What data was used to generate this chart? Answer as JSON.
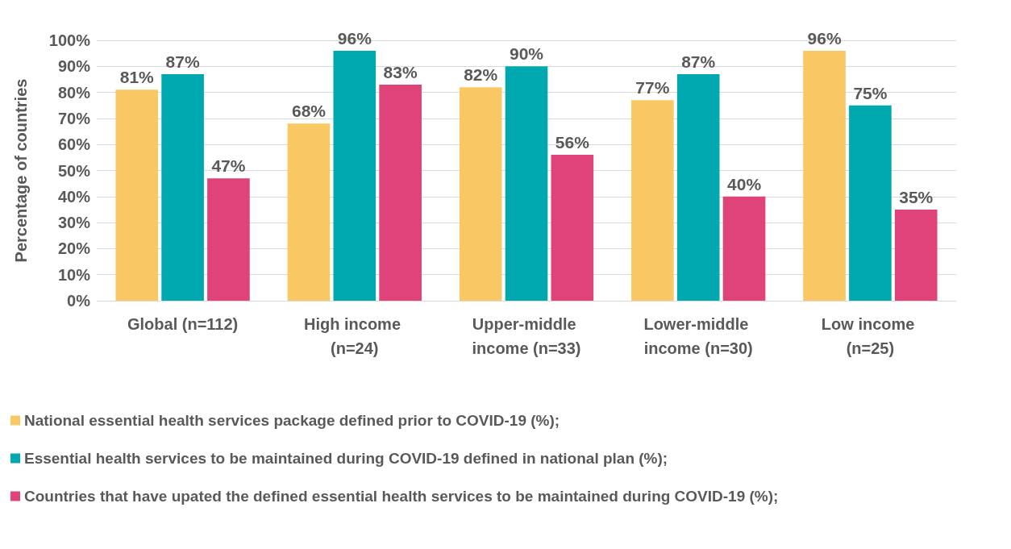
{
  "chart_data": {
    "type": "bar",
    "ylabel": "Percentage of countries",
    "categories": [
      "Global (n=112)",
      "High income (n=24)",
      "Upper-middle income (n=33)",
      "Lower-middle income (n=30)",
      "Low income (n=25)"
    ],
    "series": [
      {
        "name": "National essential health services package defined prior to COVID-19 (%);",
        "color": "#f9c763",
        "values": [
          81,
          68,
          82,
          77,
          96
        ],
        "value_labels": [
          "81%",
          "68%",
          "82%",
          "77%",
          "96%"
        ]
      },
      {
        "name": "Essential health services to be maintained during COVID-19 defined in national plan (%);",
        "color": "#00a9b0",
        "values": [
          87,
          96,
          90,
          87,
          75
        ],
        "value_labels": [
          "87%",
          "96%",
          "90%",
          "87%",
          "75%"
        ]
      },
      {
        "name": "Countries that have upated the defined essential health services to be maintained during COVID-19 (%);",
        "color": "#e0427a",
        "values": [
          47,
          83,
          56,
          40,
          35
        ],
        "value_labels": [
          "47%",
          "83%",
          "56%",
          "40%",
          "35%"
        ]
      }
    ],
    "ylim": [
      0,
      100
    ],
    "yticks": [
      {
        "value": 0,
        "label": "0%"
      },
      {
        "value": 10,
        "label": "10%"
      },
      {
        "value": 20,
        "label": "20%"
      },
      {
        "value": 30,
        "label": "30%"
      },
      {
        "value": 40,
        "label": "40%"
      },
      {
        "value": 50,
        "label": "50%"
      },
      {
        "value": 60,
        "label": "60%"
      },
      {
        "value": 70,
        "label": "70%"
      },
      {
        "value": 80,
        "label": "80%"
      },
      {
        "value": 90,
        "label": "90%"
      },
      {
        "value": 100,
        "label": "100%"
      }
    ],
    "grid": "y",
    "legend": "bottom"
  }
}
